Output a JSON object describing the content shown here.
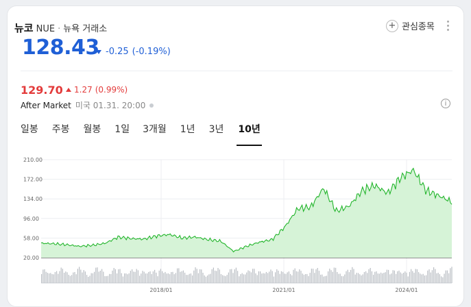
{
  "stock": {
    "name": "뉴코",
    "ticker": "NUE",
    "exchange": "뉴욕 거래소",
    "price": "128.43",
    "change": "-0.25",
    "change_pct": "(-0.19%)"
  },
  "watchlist": {
    "label": "관심종목"
  },
  "after_market": {
    "price": "129.70",
    "change": "1.27",
    "change_pct": "(0.99%)",
    "label": "After Market",
    "meta": "미국 01.31. 20:00"
  },
  "tabs": [
    {
      "label": "일봉"
    },
    {
      "label": "주봉"
    },
    {
      "label": "월봉"
    },
    {
      "label": "1일"
    },
    {
      "label": "3개월"
    },
    {
      "label": "1년"
    },
    {
      "label": "3년"
    },
    {
      "label": "10년",
      "active": true
    }
  ],
  "colors": {
    "up": "#e33b3b",
    "down": "#1f5fd6",
    "line": "#22b52b",
    "fill": "#d6f3d7"
  },
  "chart_data": {
    "type": "area",
    "y_ticks": [
      "210.00",
      "172.00",
      "134.00",
      "96.00",
      "58.00",
      "20.00"
    ],
    "ylim": [
      20,
      210
    ],
    "x_ticks": [
      "2018/01",
      "2021/01",
      "2024/01"
    ],
    "x": [
      "2015/02",
      "2015/06",
      "2015/10",
      "2016/02",
      "2016/06",
      "2016/10",
      "2017/02",
      "2017/06",
      "2017/10",
      "2018/02",
      "2018/06",
      "2018/10",
      "2019/02",
      "2019/06",
      "2019/10",
      "2020/03",
      "2020/06",
      "2020/10",
      "2021/01",
      "2021/04",
      "2021/08",
      "2021/12",
      "2022/03",
      "2022/06",
      "2022/09",
      "2022/12",
      "2023/04",
      "2023/08",
      "2023/12",
      "2024/04",
      "2024/08",
      "2024/11",
      "2025/01"
    ],
    "series": [
      {
        "values": [
          48,
          47,
          45,
          42,
          44,
          48,
          60,
          57,
          56,
          62,
          65,
          58,
          60,
          55,
          52,
          32,
          42,
          50,
          55,
          80,
          115,
          118,
          155,
          110,
          120,
          150,
          160,
          145,
          175,
          190,
          150,
          140,
          128
        ]
      }
    ]
  }
}
